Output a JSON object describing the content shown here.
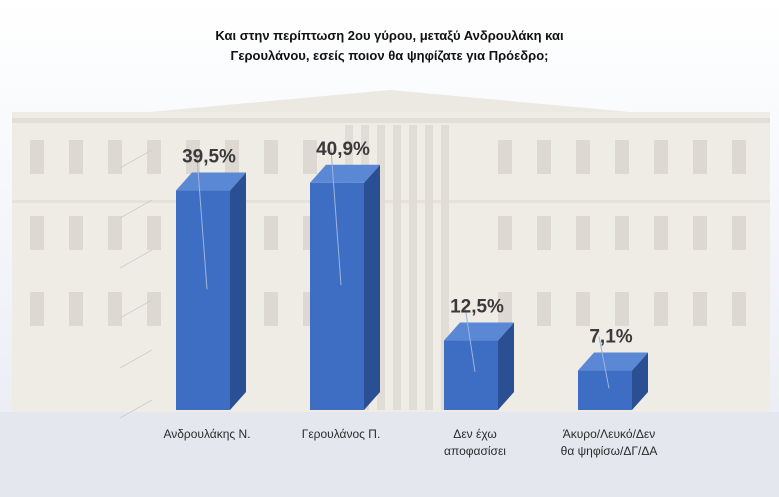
{
  "title_lines": [
    "Και στην περίπτωση 2ου γύρου, μεταξύ Ανδρουλάκη και",
    "Γερουλάνου, εσείς ποιον θα ψηφίζατε για Πρόεδρο;"
  ],
  "colors": {
    "bar_front": "#3d6ec4",
    "bar_side": "#2a4f93",
    "bar_top": "#5a88d4"
  },
  "chart_data": {
    "type": "bar",
    "title": "Και στην περίπτωση 2ου γύρου, μεταξύ Ανδρουλάκη και Γερουλάνου, εσείς ποιον θα ψηφίζατε για Πρόεδρο;",
    "categories": [
      "Ανδρουλάκης Ν.",
      "Γερουλάνος Π.",
      "Δεν έχω αποφασίσει",
      "Άκυρο/Λευκό/Δεν θα ψηφίσω/ΔΓ/ΔΑ"
    ],
    "category_lines": [
      [
        "Ανδρουλάκης Ν."
      ],
      [
        "Γερουλάνος Π."
      ],
      [
        "Δεν έχω",
        "αποφασίσει"
      ],
      [
        "Άκυρο/Λευκό/Δεν",
        "θα ψηφίσω/ΔΓ/ΔΑ"
      ]
    ],
    "values": [
      39.5,
      40.9,
      12.5,
      7.1
    ],
    "data_labels": [
      "39,5%",
      "40,9%",
      "12,5%",
      "7,1%"
    ],
    "ylim": [
      0,
      45
    ],
    "grid": true,
    "xlabel": "",
    "ylabel": ""
  }
}
